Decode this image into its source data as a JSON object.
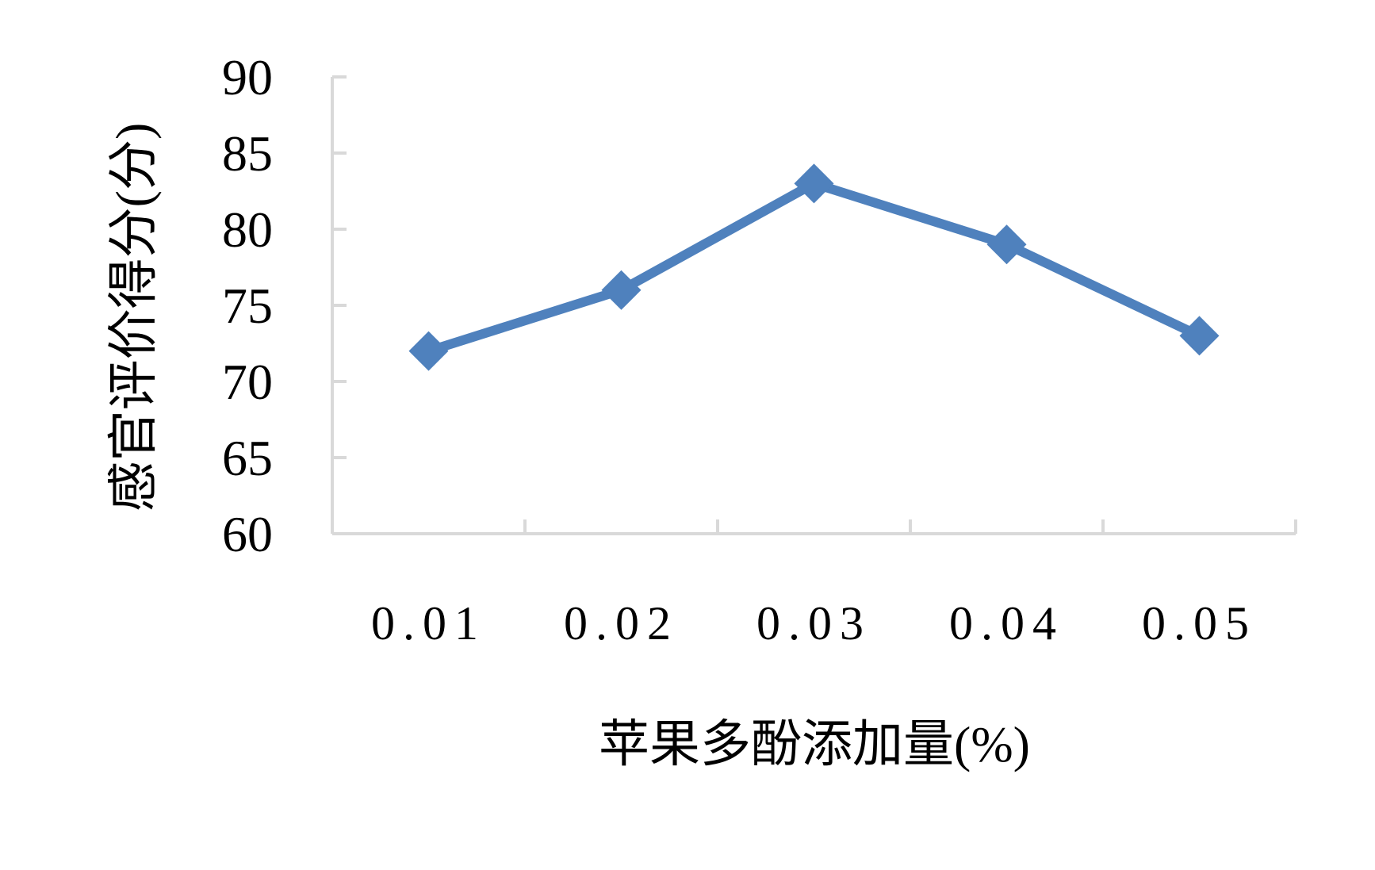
{
  "chart_data": {
    "type": "line",
    "categories": [
      "0.01",
      "0.02",
      "0.03",
      "0.04",
      "0.05"
    ],
    "series": [
      {
        "values": [
          72,
          76,
          83,
          79,
          73
        ]
      }
    ],
    "xlabel": "苹果多酚添加量(%)",
    "ylabel": "感官评价得分(分)",
    "ylim": [
      60,
      90
    ],
    "yticks": [
      "60",
      "65",
      "70",
      "75",
      "80",
      "85",
      "90"
    ],
    "grid": false,
    "marker": "diamond",
    "color": "#4f81bd",
    "axis_color": "#d9d9d9"
  }
}
